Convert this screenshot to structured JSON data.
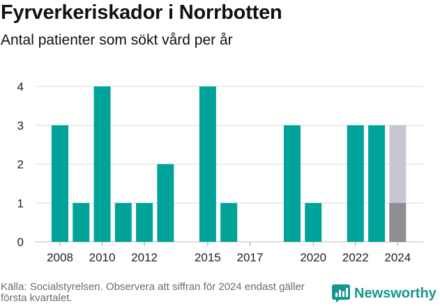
{
  "title": "Fyrverkeriskador i Norrbotten",
  "subtitle": "Antal patienter som sökt vård per år",
  "footer": {
    "source": "Källa: Socialstyrelsen. Observera att siffran för 2024 endast gäller första kvartalet."
  },
  "brand": {
    "name": "Newsworthy",
    "icon": "newsworthy-logo-icon"
  },
  "colors": {
    "bar": "#00a39a",
    "bar_partial": "#8e8e93",
    "bar_full_year_ghost": "#c7c7d1",
    "grid": "#dcdcdc",
    "brand": "#15968e"
  },
  "chart_data": {
    "type": "bar",
    "x": [
      2008,
      2009,
      2010,
      2011,
      2012,
      2013,
      2014,
      2015,
      2016,
      2017,
      2018,
      2019,
      2020,
      2021,
      2022,
      2023,
      2024
    ],
    "values": [
      3,
      1,
      4,
      1,
      1,
      2,
      null,
      4,
      1,
      null,
      null,
      3,
      1,
      null,
      3,
      3,
      1
    ],
    "ghost": {
      "x": 2024,
      "value": 3
    },
    "xticks": [
      2008,
      2010,
      2012,
      2015,
      2017,
      2020,
      2022,
      2024
    ],
    "yticks": [
      0,
      1,
      2,
      3,
      4
    ],
    "ylim": [
      0,
      4
    ],
    "xlabel": "",
    "ylabel": "",
    "grid": true
  }
}
